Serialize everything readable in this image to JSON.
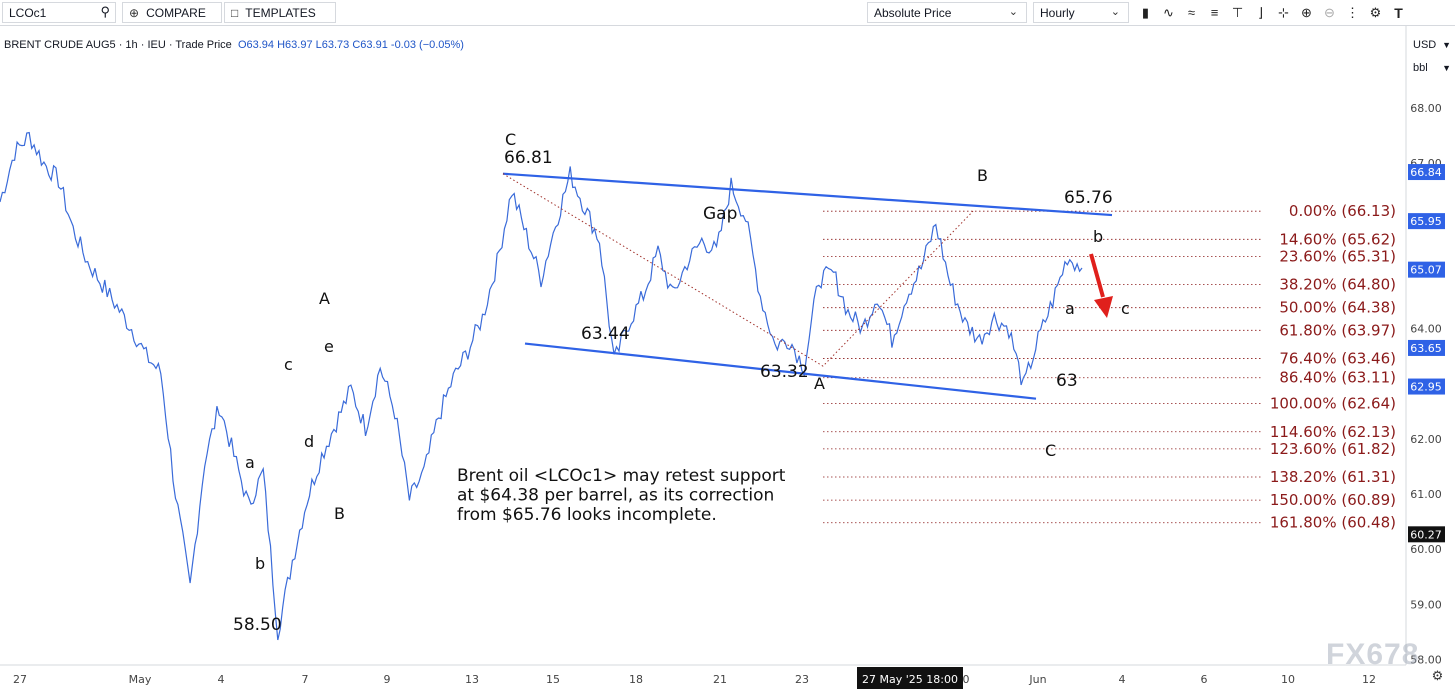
{
  "toolbar": {
    "symbol": "LCOc1",
    "compare": "COMPARE",
    "templates": "TEMPLATES",
    "price_mode": "Absolute Price",
    "interval": "Hourly",
    "compare_icon": "plus-circle-icon",
    "templates_icon": "folder-icon",
    "search_icon": "search-icon"
  },
  "header": {
    "instrument": "BRENT CRUDE AUG5 · 1h · IEU · Trade Price",
    "open": "O63.94",
    "high": "H63.97",
    "low": "L63.73",
    "close": "C63.91",
    "change": "-0.03 (−0.05%)"
  },
  "units": {
    "currency": "USD",
    "measure": "bbl"
  },
  "watermark": "FX678",
  "colors": {
    "price_line": "#3a6bd9",
    "channel": "#2f62e6",
    "fib": "#8b1a1a",
    "arrow": "#e0201c",
    "text": "#111"
  },
  "chart_data": {
    "type": "line",
    "title": "",
    "ylim": [
      57.9,
      68.6
    ],
    "y_ticks": [
      "68.00",
      "67.00",
      "66.00",
      "65.00",
      "64.00",
      "63.00",
      "62.00",
      "61.00",
      "60.00",
      "59.00",
      "58.00"
    ],
    "x_ticks": [
      "27",
      "May",
      "4",
      "7",
      "9",
      "13",
      "15",
      "18",
      "21",
      "23",
      "27 May '25  18:00",
      "0",
      "Jun",
      "4",
      "6",
      "10",
      "12"
    ],
    "series": [
      {
        "values": [
          66.3,
          67.2,
          67.5,
          67.0,
          66.7,
          65.8,
          65.2,
          64.8,
          64.4,
          64.0,
          63.5,
          63.2,
          61.0,
          59.3,
          61.6,
          62.6,
          61.7,
          60.8,
          61.4,
          58.5,
          59.8,
          60.9,
          61.7,
          62.3,
          62.9,
          62.2,
          63.3,
          62.5,
          60.9,
          61.4,
          62.4,
          63.1,
          63.6,
          64.2,
          65.2,
          66.5,
          65.7,
          64.9,
          65.9,
          66.8,
          66.2,
          65.6,
          63.4,
          64.1,
          64.6,
          65.4,
          64.6,
          65.2,
          65.6,
          65.4,
          66.6,
          66.0,
          64.6,
          63.7,
          63.8,
          63.3,
          64.9,
          65.0,
          64.3,
          64.0,
          64.6,
          63.8,
          64.6,
          65.1,
          65.9,
          64.8,
          64.1,
          63.8,
          64.2,
          64.0,
          62.95,
          63.8,
          64.5,
          65.3,
          65.1
        ]
      }
    ],
    "current_price": "65.07",
    "axis_labels": [
      {
        "value": "66.84",
        "y": 66.84
      },
      {
        "value": "65.95",
        "y": 65.95
      },
      {
        "value": "65.07",
        "y": 65.07
      },
      {
        "value": "63.65",
        "y": 63.65
      },
      {
        "value": "62.95",
        "y": 62.95
      },
      {
        "value": "60.27",
        "y": 60.27
      }
    ],
    "fibonacci": [
      {
        "label": "0.00% (66.13)",
        "price": 66.13
      },
      {
        "label": "14.60% (65.62)",
        "price": 65.62
      },
      {
        "label": "23.60% (65.31)",
        "price": 65.31
      },
      {
        "label": "38.20% (64.80)",
        "price": 64.8
      },
      {
        "label": "50.00% (64.38)",
        "price": 64.38
      },
      {
        "label": "61.80% (63.97)",
        "price": 63.97
      },
      {
        "label": "76.40% (63.46)",
        "price": 63.46
      },
      {
        "label": "86.40% (63.11)",
        "price": 63.11
      },
      {
        "label": "100.00% (62.64)",
        "price": 62.64
      },
      {
        "label": "114.60% (62.13)",
        "price": 62.13
      },
      {
        "label": "123.60% (61.82)",
        "price": 61.82
      },
      {
        "label": "138.20% (61.31)",
        "price": 61.31
      },
      {
        "label": "150.00% (60.89)",
        "price": 60.89
      },
      {
        "label": "161.80% (60.48)",
        "price": 60.48
      }
    ],
    "channel_upper": [
      66.81,
      66.06
    ],
    "channel_lower": [
      63.73,
      62.73
    ],
    "annotations": [
      {
        "text": "C",
        "wave": true
      },
      {
        "text": "66.81"
      },
      {
        "text": "Gap"
      },
      {
        "text": "B",
        "wave": true
      },
      {
        "text": "65.76"
      },
      {
        "text": "b",
        "wave": true
      },
      {
        "text": "a",
        "wave": true
      },
      {
        "text": "c",
        "wave": true
      },
      {
        "text": "63.44"
      },
      {
        "text": "63.32"
      },
      {
        "text": "A",
        "wave": true
      },
      {
        "text": "63"
      },
      {
        "text": "C",
        "wave": true
      },
      {
        "text": "A",
        "wave": true
      },
      {
        "text": "c",
        "wave": true
      },
      {
        "text": "e",
        "wave": true
      },
      {
        "text": "d",
        "wave": true
      },
      {
        "text": "a",
        "wave": true
      },
      {
        "text": "B",
        "wave": true
      },
      {
        "text": "b",
        "wave": true
      },
      {
        "text": "58.50"
      }
    ],
    "commentary": [
      "Brent oil <LCOc1> may retest support",
      "at $64.38 per barrel, as its correction",
      "from $65.76 looks incomplete."
    ]
  }
}
